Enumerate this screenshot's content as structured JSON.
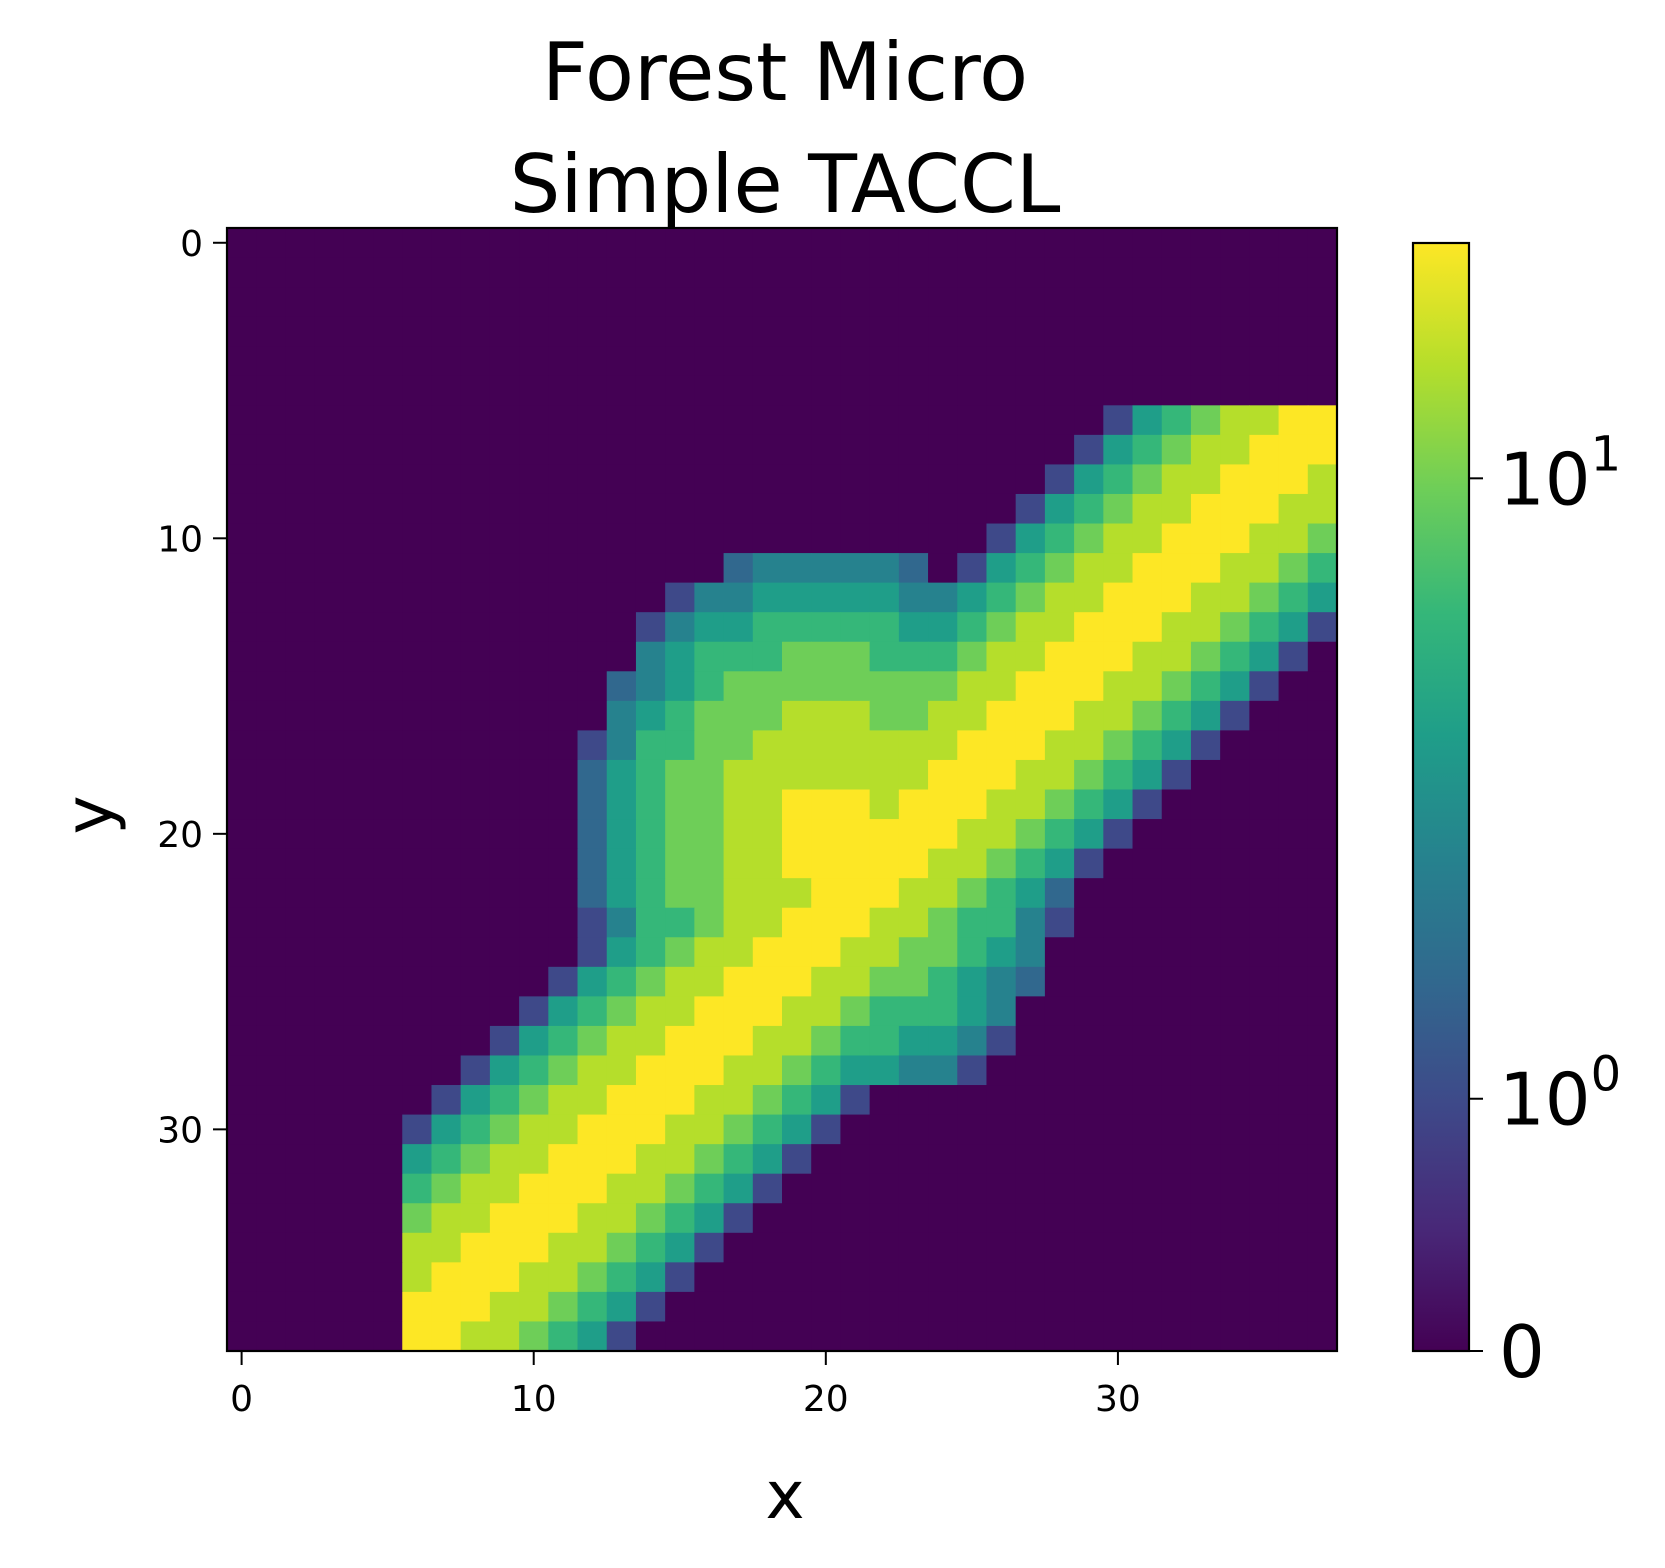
{
  "chart_data": {
    "type": "heatmap",
    "title_lines": [
      "Forest Micro",
      "Simple TACCL"
    ],
    "xlabel": "x",
    "ylabel": "y",
    "colormap": "viridis",
    "color_scale": "symlog",
    "grid": false,
    "x_ticks": [
      0,
      10,
      20,
      30
    ],
    "y_ticks": [
      0,
      10,
      20,
      30
    ],
    "x_tick_labels": [
      "0",
      "10",
      "20",
      "30"
    ],
    "y_tick_labels": [
      "0",
      "10",
      "20",
      "30"
    ],
    "colorbar": {
      "ticks": [
        {
          "value": 0,
          "base": "0",
          "exp": ""
        },
        {
          "value": 1,
          "base": "10",
          "exp": "0"
        },
        {
          "value": 10,
          "base": "10",
          "exp": "1"
        }
      ],
      "vmax": 20
    },
    "grid_size": {
      "cols": 38,
      "rows": 38
    },
    "note": "Values reconstructed from color; regions: an L-shaped cluster centered near (20,20) and a diagonal band from bottom-left to upper-right, both peaking around 20 and fading to ~1 at edges; background is 0."
  },
  "colors": {
    "viridis": [
      "#440154",
      "#482878",
      "#3e4989",
      "#31688e",
      "#26828e",
      "#1f9e89",
      "#35b779",
      "#6ece58",
      "#b5de2b",
      "#fde725"
    ]
  }
}
